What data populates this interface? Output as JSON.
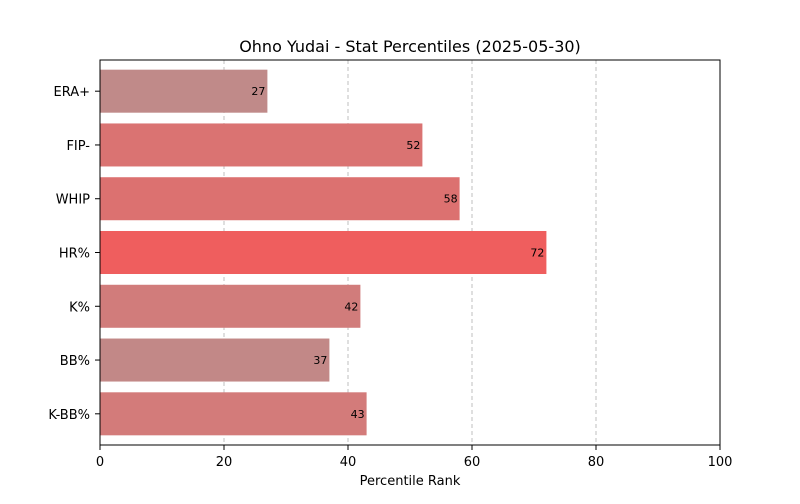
{
  "chart_data": {
    "type": "bar",
    "orientation": "horizontal",
    "title": "Ohno Yudai - Stat Percentiles (2025-05-30)",
    "xlabel": "Percentile Rank",
    "ylabel": "",
    "xlim": [
      0,
      100
    ],
    "xticks": [
      0,
      20,
      40,
      60,
      80,
      100
    ],
    "grid": "x-dashed",
    "categories": [
      "ERA+",
      "FIP-",
      "WHIP",
      "HR%",
      "K%",
      "BB%",
      "K-BB%"
    ],
    "values": [
      27,
      52,
      58,
      72,
      42,
      37,
      43
    ],
    "colors": [
      "#c08a89",
      "#da7372",
      "#dc7170",
      "#ef5e5e",
      "#d17c7b",
      "#c28887",
      "#d37b7a"
    ]
  }
}
